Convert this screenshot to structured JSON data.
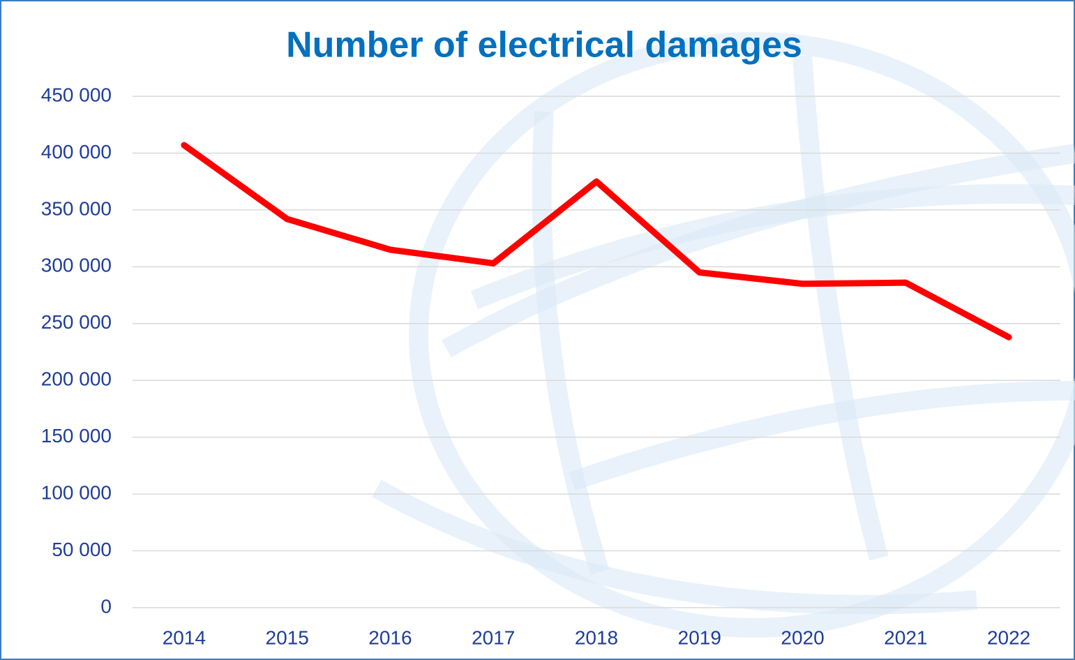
{
  "chart_data": {
    "type": "line",
    "title": "Number of electrical damages",
    "categories": [
      "2014",
      "2015",
      "2016",
      "2017",
      "2018",
      "2019",
      "2020",
      "2021",
      "2022"
    ],
    "series": [
      {
        "name": "Number of electrical damages",
        "color": "#ff0000",
        "values": [
          407000,
          342000,
          315000,
          303000,
          375000,
          295000,
          285000,
          286000,
          238000
        ]
      }
    ],
    "ylim": [
      0,
      450000
    ],
    "yticks": [
      0,
      {
        "value": 50000,
        "label": "50 000"
      },
      {
        "value": 100000,
        "label": "100 000"
      },
      {
        "value": 150000,
        "label": "150 000"
      },
      {
        "value": 200000,
        "label": "200 000"
      },
      {
        "value": 250000,
        "label": "250 000"
      },
      {
        "value": 300000,
        "label": "300 000"
      },
      {
        "value": 350000,
        "label": "350 000"
      },
      {
        "value": 400000,
        "label": "400 000"
      },
      {
        "value": 450000,
        "label": "450 000"
      }
    ],
    "grid": true,
    "legend": false
  }
}
